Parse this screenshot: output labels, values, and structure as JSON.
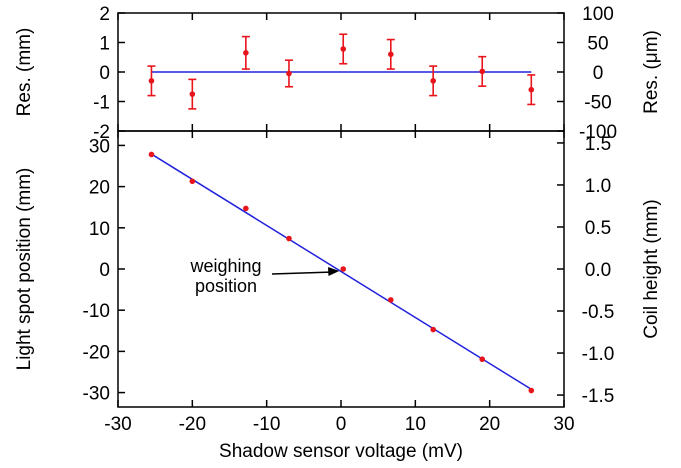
{
  "chart_data": [
    {
      "type": "scatter",
      "panel": "residuals",
      "title": "",
      "ylabel": "Res. (mm)",
      "y2label": "Res. (μm)",
      "xlim": [
        -30,
        30
      ],
      "ylim": [
        -2,
        2
      ],
      "y2lim": [
        -100,
        100
      ],
      "yticks": [
        "2",
        "1",
        "0",
        "-1",
        "-2"
      ],
      "y2ticks": [
        "100",
        "50",
        "0",
        "-50",
        "-100"
      ],
      "series": [
        {
          "x": [
            -25.5,
            -20.0,
            -12.8,
            -7.0,
            0.3,
            6.7,
            12.4,
            19.0,
            25.6
          ],
          "y": [
            -0.3,
            -0.75,
            0.65,
            -0.05,
            0.78,
            0.6,
            -0.3,
            0.02,
            -0.6
          ],
          "yerr": [
            0.5,
            0.5,
            0.55,
            0.45,
            0.5,
            0.5,
            0.5,
            0.5,
            0.5
          ],
          "color": "#e8141b"
        }
      ],
      "fit_line": {
        "y": 0,
        "color": "#2222dd"
      }
    },
    {
      "type": "scatter",
      "panel": "main",
      "title": "",
      "xlabel": "Shadow sensor voltage (mV)",
      "ylabel": "Light spot position (mm)",
      "y2label": "Coil height (mm)",
      "xlim": [
        -30,
        30
      ],
      "ylim": [
        -33.5,
        33.5
      ],
      "xticks": [
        "-30",
        "-20",
        "-10",
        "0",
        "10",
        "20",
        "30"
      ],
      "yticks": [
        "30",
        "20",
        "10",
        "0",
        "-10",
        "-20",
        "-30"
      ],
      "y2ticks": [
        "1.5",
        "1.0",
        "0.5",
        "0.0",
        "-0.5",
        "-1.0",
        "-1.5"
      ],
      "series": [
        {
          "x": [
            -25.5,
            -20.0,
            -12.8,
            -7.0,
            0.3,
            6.7,
            12.4,
            19.0,
            25.6
          ],
          "y": [
            27.8,
            21.3,
            14.7,
            7.4,
            0.0,
            -7.5,
            -14.7,
            -21.9,
            -29.5
          ],
          "color": "#e8141b"
        }
      ],
      "fit_line": {
        "x": [
          -25.5,
          25.6
        ],
        "y": [
          27.9,
          -29.2
        ],
        "color": "#2222dd"
      },
      "annotation": {
        "lines": [
          "weighing",
          "position"
        ],
        "arrow_to": {
          "x": 0.3,
          "y": 0.0
        }
      }
    }
  ]
}
